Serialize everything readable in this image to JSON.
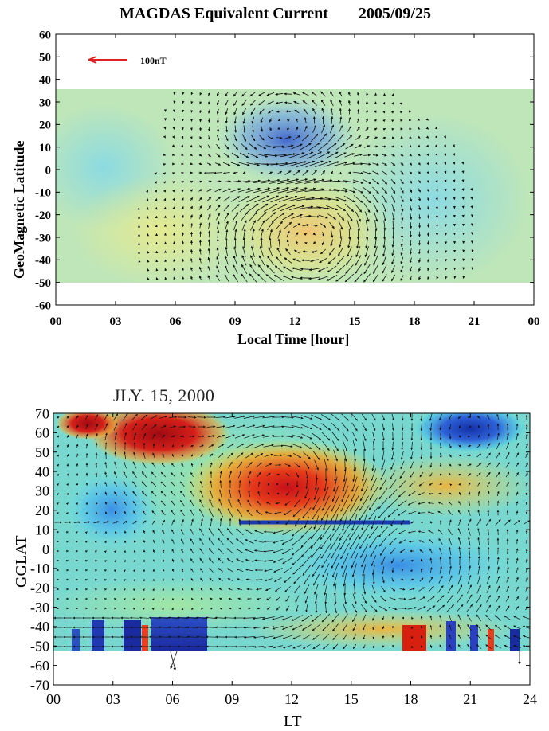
{
  "chart_data": [
    {
      "type": "vector-field",
      "title": "MAGDAS Equivalent Current",
      "subtitle": "2005/09/25",
      "xlabel": "Local Time [hour]",
      "ylabel": "GeoMagnetic Latitude",
      "x_ticks": [
        "00",
        "03",
        "06",
        "09",
        "12",
        "15",
        "18",
        "21",
        "00"
      ],
      "y_ticks": [
        "60",
        "50",
        "40",
        "30",
        "20",
        "10",
        "0",
        "-10",
        "-20",
        "-30",
        "-40",
        "-50",
        "-60"
      ],
      "xlim": [
        0,
        24
      ],
      "ylim": [
        -60,
        60
      ],
      "data_lat_range": [
        -50,
        37
      ],
      "reference_vector": {
        "label": "100nT",
        "color": "#e02020",
        "direction": "west"
      },
      "background": "heatmap",
      "colormap": "jet",
      "features": [
        {
          "kind": "negative-vortex",
          "x": 11.5,
          "y": 15,
          "color": "#4a6ed8"
        },
        {
          "kind": "positive-vortex",
          "x": 12.5,
          "y": -22,
          "color": "#f0c46a"
        }
      ],
      "grid": false
    },
    {
      "type": "vector-field",
      "title": "JLY. 15, 2000",
      "xlabel": "LT",
      "ylabel": "GGLAT",
      "x_ticks": [
        "00",
        "03",
        "06",
        "09",
        "12",
        "15",
        "18",
        "21",
        "24"
      ],
      "y_ticks": [
        "70",
        "60",
        "50",
        "40",
        "30",
        "20",
        "10",
        "0",
        "-10",
        "-20",
        "-30",
        "-40",
        "-50",
        "-60",
        "-70"
      ],
      "xlim": [
        0,
        24
      ],
      "ylim": [
        -70,
        70
      ],
      "data_lat_range": [
        -52,
        70
      ],
      "background": "heatmap",
      "colormap": "jet",
      "features": [
        {
          "kind": "positive",
          "x": 12,
          "y": 30,
          "color": "#d81818"
        },
        {
          "kind": "positive",
          "x": 6,
          "y": 62,
          "color": "#c01010"
        },
        {
          "kind": "negative",
          "x": 20,
          "y": 63,
          "color": "#1c3fb8"
        },
        {
          "kind": "negative",
          "x": 17,
          "y": -8,
          "color": "#4a9ee8"
        },
        {
          "kind": "negative",
          "x": 6,
          "y": -46,
          "color": "#1020a8"
        }
      ],
      "grid": false
    }
  ]
}
